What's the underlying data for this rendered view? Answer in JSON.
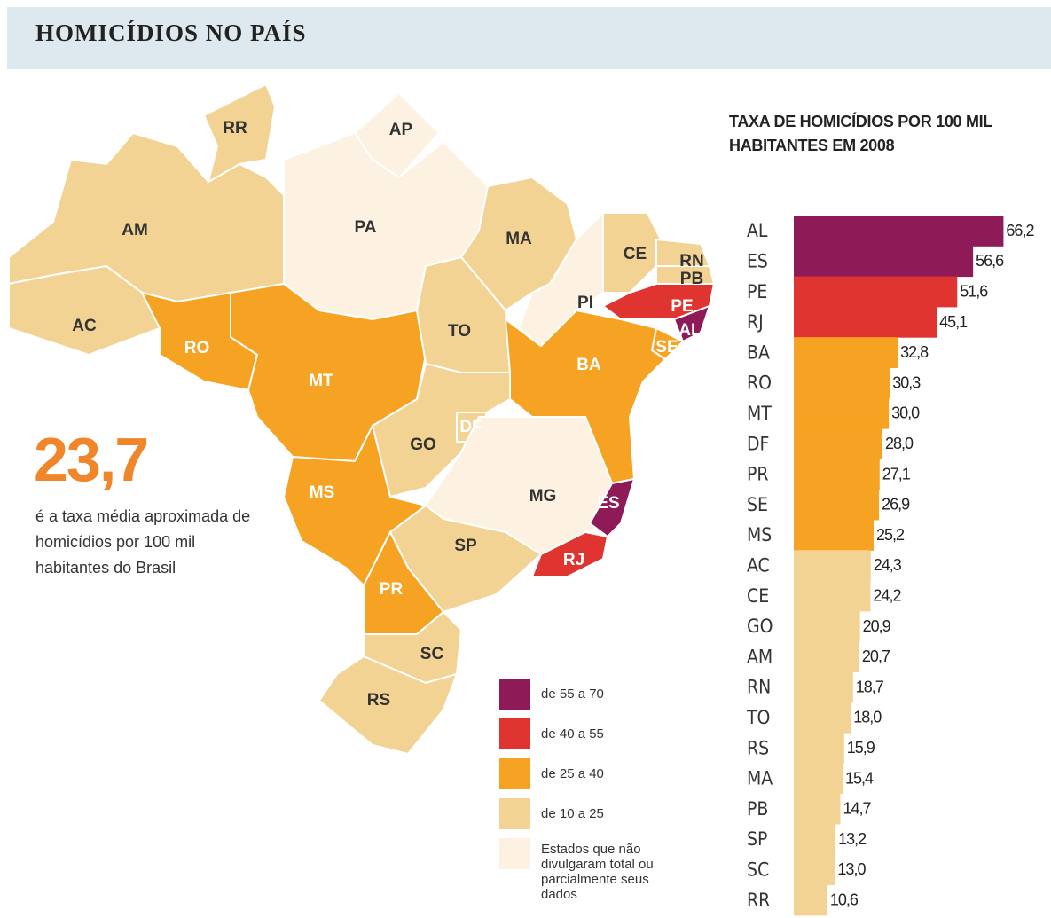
{
  "header": {
    "title": "HOMICÍDIOS NO PAÍS"
  },
  "headline": {
    "value": "23,7",
    "text": "é a taxa média aproximada de homicídios por 100 mil habitantes do Brasil"
  },
  "map": {
    "states": [
      {
        "label": "RR"
      },
      {
        "label": "AP"
      },
      {
        "label": "AM"
      },
      {
        "label": "PA"
      },
      {
        "label": "MA"
      },
      {
        "label": "CE"
      },
      {
        "label": "RN"
      },
      {
        "label": "PB"
      },
      {
        "label": "PI"
      },
      {
        "label": "PE"
      },
      {
        "label": "AC"
      },
      {
        "label": "RO"
      },
      {
        "label": "TO"
      },
      {
        "label": "AL"
      },
      {
        "label": "SE"
      },
      {
        "label": "BA"
      },
      {
        "label": "MT"
      },
      {
        "label": "DF"
      },
      {
        "label": "GO"
      },
      {
        "label": "MG"
      },
      {
        "label": "ES"
      },
      {
        "label": "MS"
      },
      {
        "label": "SP"
      },
      {
        "label": "RJ"
      },
      {
        "label": "PR"
      },
      {
        "label": "SC"
      },
      {
        "label": "RS"
      }
    ]
  },
  "legend": [
    {
      "label": "de 55 a 70",
      "color": "#8e1b57"
    },
    {
      "label": "de 40 a 55",
      "color": "#e03431"
    },
    {
      "label": "de 25 a 40",
      "color": "#f6a323"
    },
    {
      "label": "de 10 a 25",
      "color": "#f3d393"
    },
    {
      "label": "Estados que não divulgaram total ou parcialmente seus dados",
      "color": "#fdf1e1"
    }
  ],
  "chart_data": {
    "type": "bar",
    "orientation": "horizontal",
    "title": "TAXA DE HOMICÍDIOS POR 100 MIL HABITANTES EM 2008",
    "categories": [
      "AL",
      "ES",
      "PE",
      "RJ",
      "BA",
      "RO",
      "MT",
      "DF",
      "PR",
      "SE",
      "MS",
      "AC",
      "CE",
      "GO",
      "AM",
      "RN",
      "TO",
      "RS",
      "MA",
      "PB",
      "SP",
      "SC",
      "RR"
    ],
    "values": [
      66.2,
      56.6,
      51.6,
      45.1,
      32.8,
      30.3,
      30.0,
      28.0,
      27.1,
      26.9,
      25.2,
      24.3,
      24.2,
      20.9,
      20.7,
      18.7,
      18.0,
      15.9,
      15.4,
      14.7,
      13.2,
      13.0,
      10.6
    ],
    "value_labels": [
      "66,2",
      "56,6",
      "51,6",
      "45,1",
      "32,8",
      "30,3",
      "30,0",
      "28,0",
      "27,1",
      "26,9",
      "25,2",
      "24,3",
      "24,2",
      "20,9",
      "20,7",
      "18,7",
      "18,0",
      "15,9",
      "15,4",
      "14,7",
      "13,2",
      "13,0",
      "10,6"
    ],
    "colors": [
      "#8e1b57",
      "#8e1b57",
      "#e03431",
      "#e03431",
      "#f6a323",
      "#f6a323",
      "#f6a323",
      "#f6a323",
      "#f6a323",
      "#f6a323",
      "#f6a323",
      "#f3d393",
      "#f3d393",
      "#f3d393",
      "#f3d393",
      "#f3d393",
      "#f3d393",
      "#f3d393",
      "#f3d393",
      "#f3d393",
      "#f3d393",
      "#f3d393",
      "#f3d393"
    ],
    "xlim": [
      0,
      70
    ]
  }
}
